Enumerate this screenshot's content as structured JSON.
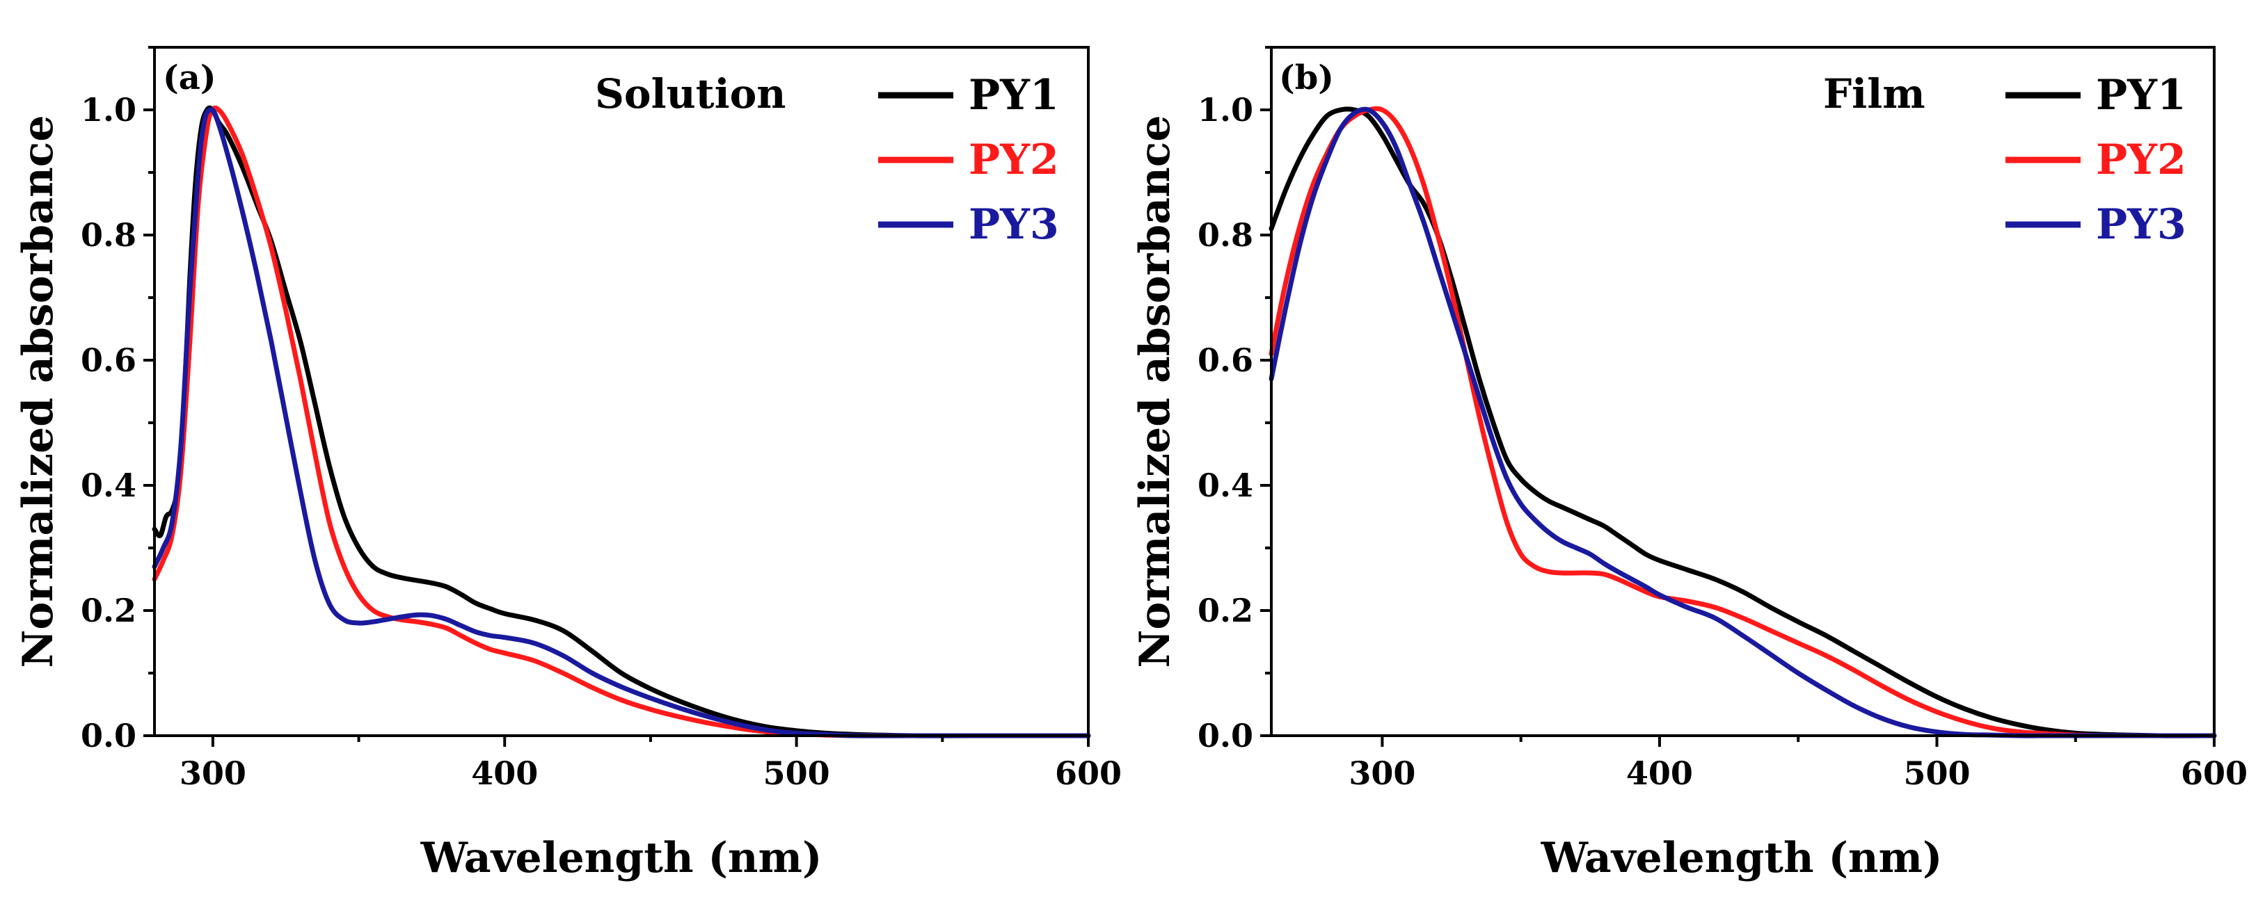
{
  "chart_data": [
    {
      "type": "line",
      "panel_label": "(a)",
      "condition": "Solution",
      "xlabel": "Wavelength (nm)",
      "ylabel": "Normalized absorbance",
      "xlim": [
        280,
        600
      ],
      "ylim": [
        0,
        1.1
      ],
      "xticks": [
        300,
        400,
        500,
        600
      ],
      "yticks": [
        0.0,
        0.2,
        0.4,
        0.6,
        0.8,
        1.0
      ],
      "xtick_labels": [
        "300",
        "400",
        "500",
        "600"
      ],
      "ytick_labels": [
        "0.0",
        "0.2",
        "0.4",
        "0.6",
        "0.8",
        "1.0"
      ],
      "legend_position": "top-right",
      "series": [
        {
          "name": "PY1",
          "color": "#000000",
          "x": [
            280,
            282,
            284,
            286,
            288,
            290,
            292,
            294,
            296,
            298,
            300,
            302,
            305,
            310,
            315,
            320,
            325,
            330,
            335,
            340,
            345,
            350,
            355,
            360,
            365,
            370,
            375,
            380,
            385,
            390,
            395,
            400,
            410,
            420,
            430,
            440,
            450,
            460,
            470,
            480,
            490,
            500,
            510,
            520,
            540,
            560,
            600
          ],
          "y": [
            0.33,
            0.32,
            0.35,
            0.36,
            0.4,
            0.52,
            0.72,
            0.88,
            0.97,
            1.0,
            1.0,
            0.98,
            0.96,
            0.91,
            0.85,
            0.79,
            0.71,
            0.63,
            0.53,
            0.43,
            0.35,
            0.3,
            0.27,
            0.258,
            0.252,
            0.248,
            0.244,
            0.238,
            0.226,
            0.212,
            0.203,
            0.195,
            0.185,
            0.168,
            0.135,
            0.1,
            0.075,
            0.055,
            0.038,
            0.024,
            0.014,
            0.008,
            0.004,
            0.002,
            0.0,
            0.0,
            0.0
          ]
        },
        {
          "name": "PY2",
          "color": "#ff1a1a",
          "x": [
            280,
            283,
            286,
            289,
            292,
            295,
            298,
            300,
            302,
            305,
            310,
            315,
            320,
            325,
            330,
            335,
            340,
            345,
            350,
            355,
            360,
            365,
            370,
            375,
            380,
            385,
            390,
            395,
            400,
            410,
            420,
            430,
            440,
            450,
            460,
            470,
            480,
            490,
            500,
            510,
            520,
            540,
            560,
            600
          ],
          "y": [
            0.25,
            0.28,
            0.32,
            0.42,
            0.62,
            0.85,
            0.97,
            1.0,
            1.0,
            0.98,
            0.93,
            0.86,
            0.78,
            0.68,
            0.57,
            0.45,
            0.34,
            0.27,
            0.225,
            0.2,
            0.19,
            0.185,
            0.182,
            0.178,
            0.172,
            0.16,
            0.148,
            0.138,
            0.132,
            0.12,
            0.1,
            0.077,
            0.057,
            0.042,
            0.03,
            0.02,
            0.012,
            0.006,
            0.003,
            0.001,
            0.0,
            0.0,
            0.0,
            0.0
          ]
        },
        {
          "name": "PY3",
          "color": "#1a1a9e",
          "x": [
            280,
            283,
            286,
            289,
            292,
            295,
            297,
            299,
            301,
            305,
            310,
            315,
            320,
            325,
            330,
            335,
            340,
            345,
            350,
            355,
            360,
            365,
            370,
            375,
            380,
            385,
            390,
            395,
            400,
            410,
            420,
            430,
            440,
            450,
            460,
            470,
            480,
            490,
            500,
            510,
            520,
            540,
            560,
            600
          ],
          "y": [
            0.27,
            0.3,
            0.34,
            0.46,
            0.7,
            0.9,
            0.98,
            1.0,
            0.99,
            0.93,
            0.84,
            0.74,
            0.63,
            0.51,
            0.39,
            0.28,
            0.21,
            0.185,
            0.18,
            0.182,
            0.186,
            0.19,
            0.193,
            0.192,
            0.186,
            0.176,
            0.166,
            0.16,
            0.157,
            0.148,
            0.128,
            0.1,
            0.078,
            0.06,
            0.044,
            0.03,
            0.018,
            0.009,
            0.004,
            0.002,
            0.0,
            0.0,
            0.0,
            0.0
          ]
        }
      ]
    },
    {
      "type": "line",
      "panel_label": "(b)",
      "condition": "Film",
      "xlabel": "Wavelength (nm)",
      "ylabel": "Normalized absorbance",
      "xlim": [
        260,
        600
      ],
      "ylim": [
        0,
        1.1
      ],
      "xticks": [
        300,
        400,
        500,
        600
      ],
      "yticks": [
        0.0,
        0.2,
        0.4,
        0.6,
        0.8,
        1.0
      ],
      "xtick_labels": [
        "300",
        "400",
        "500",
        "600"
      ],
      "ytick_labels": [
        "0.0",
        "0.2",
        "0.4",
        "0.6",
        "0.8",
        "1.0"
      ],
      "legend_position": "top-right",
      "series": [
        {
          "name": "PY1",
          "color": "#000000",
          "x": [
            260,
            265,
            270,
            275,
            280,
            285,
            290,
            295,
            300,
            305,
            310,
            315,
            320,
            325,
            330,
            335,
            340,
            345,
            350,
            355,
            360,
            365,
            370,
            375,
            380,
            385,
            390,
            395,
            400,
            410,
            420,
            430,
            440,
            450,
            460,
            470,
            480,
            490,
            500,
            510,
            520,
            530,
            540,
            550,
            560,
            580,
            600
          ],
          "y": [
            0.81,
            0.87,
            0.92,
            0.96,
            0.99,
            1.0,
            1.0,
            0.99,
            0.96,
            0.92,
            0.88,
            0.85,
            0.8,
            0.73,
            0.65,
            0.57,
            0.5,
            0.44,
            0.41,
            0.39,
            0.375,
            0.365,
            0.355,
            0.345,
            0.335,
            0.32,
            0.305,
            0.29,
            0.28,
            0.265,
            0.25,
            0.23,
            0.205,
            0.182,
            0.16,
            0.135,
            0.11,
            0.085,
            0.062,
            0.043,
            0.028,
            0.017,
            0.009,
            0.004,
            0.002,
            0.0,
            0.0
          ]
        },
        {
          "name": "PY2",
          "color": "#ff1a1a",
          "x": [
            260,
            265,
            270,
            275,
            280,
            285,
            290,
            295,
            300,
            305,
            310,
            315,
            320,
            325,
            330,
            335,
            340,
            345,
            350,
            355,
            360,
            365,
            370,
            375,
            380,
            385,
            390,
            395,
            400,
            410,
            420,
            430,
            440,
            450,
            460,
            470,
            480,
            490,
            500,
            510,
            520,
            530,
            540,
            550,
            560,
            580,
            600
          ],
          "y": [
            0.61,
            0.72,
            0.81,
            0.88,
            0.93,
            0.97,
            0.99,
            1.0,
            1.0,
            0.98,
            0.94,
            0.88,
            0.8,
            0.71,
            0.61,
            0.51,
            0.42,
            0.34,
            0.29,
            0.27,
            0.262,
            0.26,
            0.26,
            0.26,
            0.258,
            0.25,
            0.24,
            0.23,
            0.222,
            0.215,
            0.205,
            0.188,
            0.168,
            0.148,
            0.128,
            0.105,
            0.08,
            0.057,
            0.038,
            0.023,
            0.012,
            0.006,
            0.003,
            0.001,
            0.0,
            0.0,
            0.0
          ]
        },
        {
          "name": "PY3",
          "color": "#1a1a9e",
          "x": [
            260,
            265,
            270,
            275,
            280,
            285,
            290,
            295,
            300,
            305,
            310,
            315,
            320,
            325,
            330,
            335,
            340,
            345,
            350,
            355,
            360,
            365,
            370,
            375,
            380,
            385,
            390,
            395,
            400,
            410,
            420,
            430,
            440,
            450,
            460,
            470,
            480,
            490,
            500,
            510,
            520,
            530,
            540,
            550,
            560,
            580,
            600
          ],
          "y": [
            0.57,
            0.68,
            0.78,
            0.86,
            0.92,
            0.97,
            0.995,
            1.0,
            0.98,
            0.94,
            0.88,
            0.82,
            0.75,
            0.68,
            0.61,
            0.54,
            0.47,
            0.41,
            0.37,
            0.345,
            0.325,
            0.31,
            0.3,
            0.29,
            0.275,
            0.262,
            0.25,
            0.238,
            0.225,
            0.205,
            0.188,
            0.16,
            0.13,
            0.1,
            0.073,
            0.048,
            0.028,
            0.014,
            0.006,
            0.002,
            0.001,
            0.0,
            0.0,
            0.0,
            0.0,
            0.0,
            0.0
          ]
        }
      ]
    }
  ]
}
